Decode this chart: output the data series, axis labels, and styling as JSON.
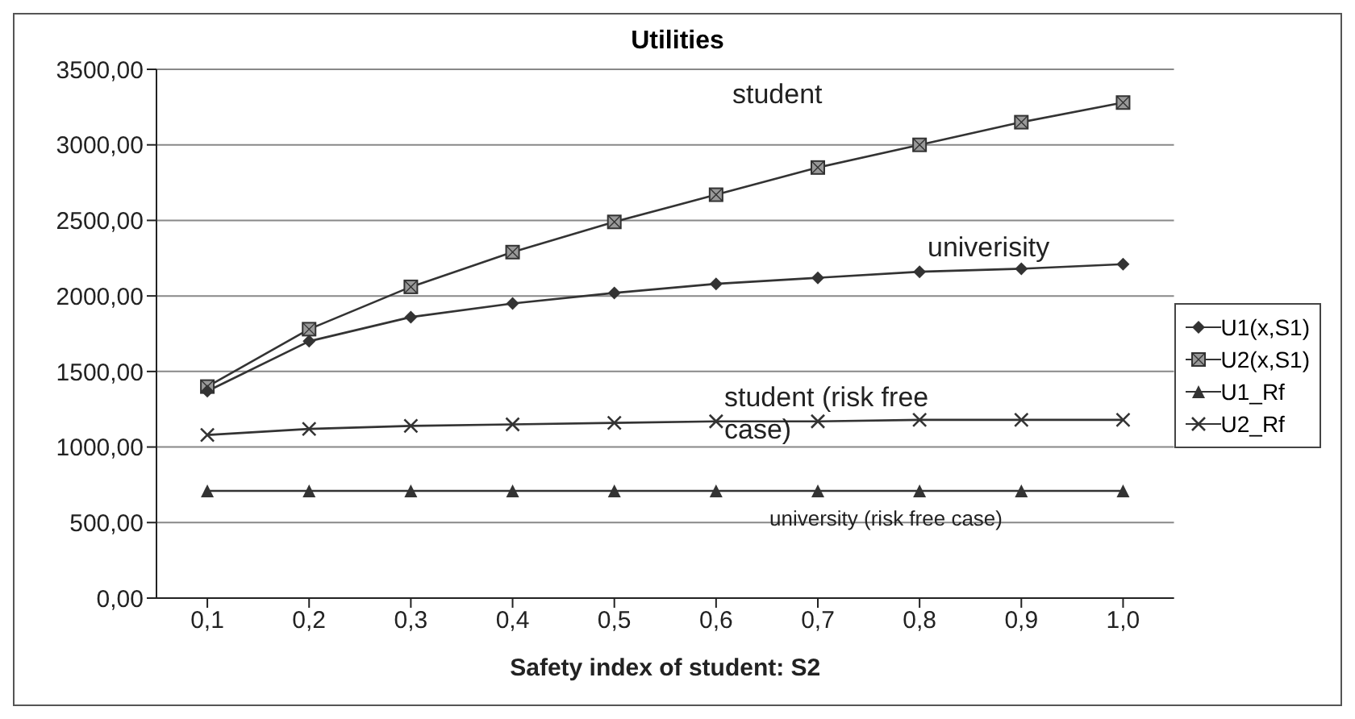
{
  "chart_data": {
    "type": "line",
    "title": "Utilities",
    "xlabel": "Safety index of student: S2",
    "categories": [
      "0,1",
      "0,2",
      "0,3",
      "0,4",
      "0,5",
      "0,6",
      "0,7",
      "0,8",
      "0,9",
      "1,0"
    ],
    "series": [
      {
        "name": "U1(x,S1)",
        "color": "#333333",
        "marker": "diamond",
        "values": [
          1370,
          1700,
          1860,
          1950,
          2020,
          2080,
          2120,
          2160,
          2180,
          2210
        ]
      },
      {
        "name": "U2(x,S1)",
        "color": "#333333",
        "marker": "square",
        "values": [
          1400,
          1780,
          2060,
          2290,
          2490,
          2670,
          2850,
          3000,
          3150,
          3280
        ]
      },
      {
        "name": "U1_Rf",
        "color": "#333333",
        "marker": "triangle",
        "values": [
          710,
          710,
          710,
          710,
          710,
          710,
          710,
          710,
          710,
          710
        ]
      },
      {
        "name": "U2_Rf",
        "color": "#333333",
        "marker": "cross",
        "values": [
          1080,
          1120,
          1140,
          1150,
          1160,
          1170,
          1170,
          1180,
          1180,
          1180
        ]
      }
    ],
    "ylim": [
      0,
      3500
    ],
    "yticks": [
      {
        "value": 0,
        "label": "0,00"
      },
      {
        "value": 500,
        "label": "500,00"
      },
      {
        "value": 1000,
        "label": "1000,00"
      },
      {
        "value": 1500,
        "label": "1500,00"
      },
      {
        "value": 2000,
        "label": "2000,00"
      },
      {
        "value": 2500,
        "label": "2500,00"
      },
      {
        "value": 3000,
        "label": "3000,00"
      },
      {
        "value": 3500,
        "label": "3500,00"
      }
    ],
    "grid": "y",
    "legend": "right",
    "line_style": "solid",
    "annotations": [
      "student",
      "univerisity",
      "student (risk free case)",
      "university (risk free case)"
    ]
  }
}
